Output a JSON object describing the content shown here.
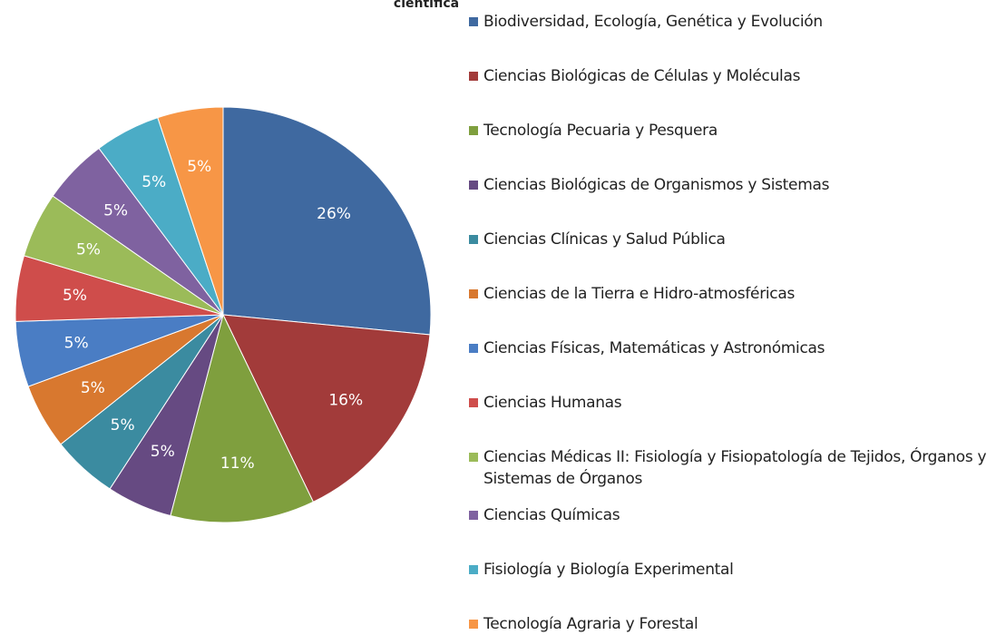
{
  "chart_data": {
    "type": "pie",
    "title": "científica",
    "categories": [
      "Biodiversidad, Ecología, Genética y Evolución",
      "Ciencias Biológicas de Células y Moléculas",
      "Tecnología Pecuaria y Pesquera",
      "Ciencias Biológicas de Organismos y Sistemas",
      "Ciencias Clínicas y Salud Pública",
      "Ciencias de la Tierra e Hidro-atmosféricas",
      "Ciencias Físicas, Matemáticas y Astronómicas",
      "Ciencias Humanas",
      "Ciencias Médicas II: Fisiología y Fisiopatología de Tejidos, Órganos y Sistemas de Órganos",
      "Ciencias Químicas",
      "Fisiología y Biología Experimental",
      "Tecnología Agraria y Forestal"
    ],
    "values": [
      26,
      16,
      11,
      5,
      5,
      5,
      5,
      5,
      5,
      5,
      5,
      5
    ],
    "value_labels": [
      "26%",
      "16%",
      "11%",
      "5%",
      "5%",
      "5%",
      "5%",
      "5%",
      "5%",
      "5%",
      "5%",
      "5%"
    ],
    "colors": [
      "#3F69A0",
      "#A23B3A",
      "#7F9F3E",
      "#664A82",
      "#3B8BA0",
      "#D8782F",
      "#4A7DC4",
      "#CF4D4B",
      "#9BBB59",
      "#7F62A0",
      "#4BACC6",
      "#F79646"
    ],
    "legend": "right"
  }
}
